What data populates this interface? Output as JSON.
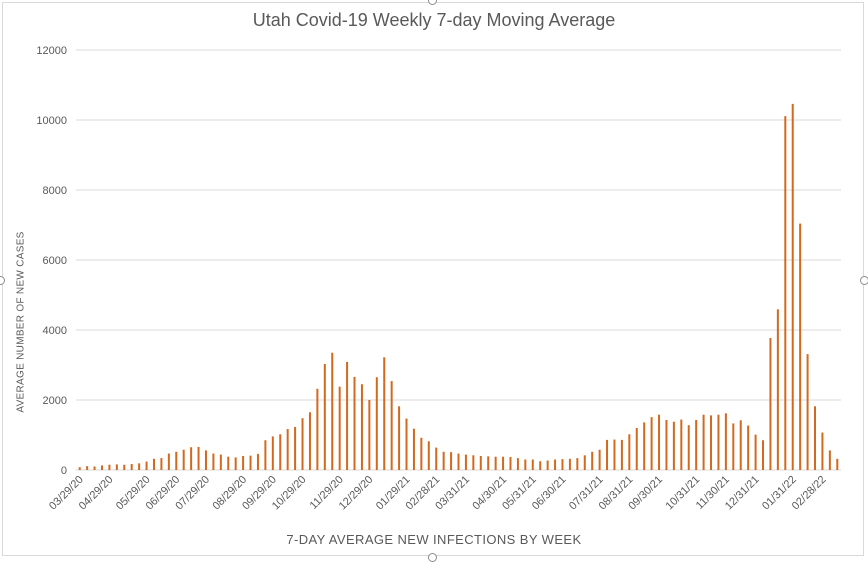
{
  "colors": {
    "bar": "#d2691e",
    "grid": "#d9d9d9",
    "text": "#595959"
  },
  "chart_data": {
    "type": "bar",
    "title": "Utah Covid-19 Weekly 7-day Moving Average",
    "xlabel": "7-DAY AVERAGE NEW INFECTIONS BY WEEK",
    "ylabel": "AVERAGE NUMBER OF NEW  CASES",
    "ylim": [
      0,
      12000
    ],
    "yticks": [
      0,
      2000,
      4000,
      6000,
      8000,
      10000,
      12000
    ],
    "grid": true,
    "legend": "none",
    "tick_labels": [
      "03/29/20",
      "04/29/20",
      "05/29/20",
      "06/29/20",
      "07/29/20",
      "08/29/20",
      "09/29/20",
      "10/29/20",
      "11/29/20",
      "12/29/20",
      "01/29/21",
      "02/28/21",
      "03/31/21",
      "04/30/21",
      "05/31/21",
      "06/30/21",
      "07/31/21",
      "08/31/21",
      "09/30/21",
      "10/31/21",
      "11/30/21",
      "12/31/21",
      "01/31/22",
      "02/28/22"
    ],
    "values": [
      80,
      110,
      100,
      130,
      150,
      160,
      150,
      170,
      190,
      240,
      320,
      340,
      470,
      520,
      580,
      650,
      660,
      560,
      470,
      440,
      380,
      360,
      400,
      410,
      460,
      850,
      960,
      1020,
      1170,
      1230,
      1480,
      1650,
      2320,
      3030,
      3350,
      2380,
      3090,
      2660,
      2450,
      2000,
      2650,
      3220,
      2540,
      1820,
      1470,
      1180,
      920,
      820,
      640,
      520,
      510,
      470,
      440,
      420,
      400,
      390,
      380,
      380,
      370,
      340,
      300,
      300,
      250,
      270,
      300,
      310,
      320,
      340,
      420,
      520,
      580,
      860,
      870,
      860,
      1020,
      1200,
      1360,
      1510,
      1580,
      1430,
      1380,
      1440,
      1280,
      1430,
      1580,
      1560,
      1580,
      1620,
      1330,
      1420,
      1270,
      1010,
      850,
      3770,
      4590,
      10110,
      10460,
      7040,
      3310,
      1820,
      1070,
      560,
      320
    ]
  }
}
